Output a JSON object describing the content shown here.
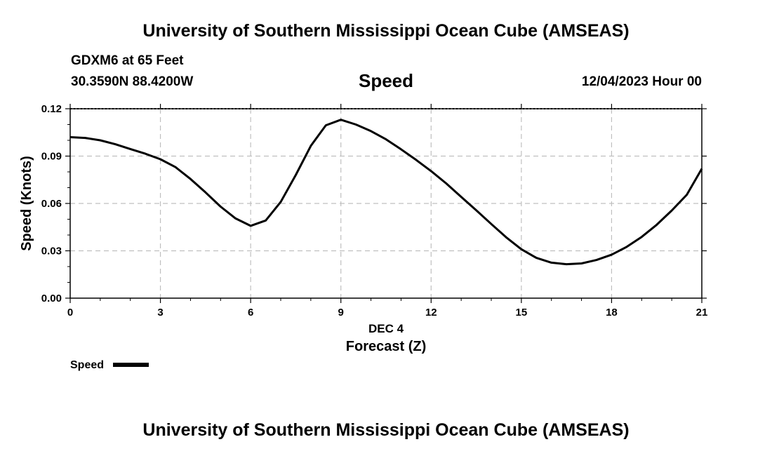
{
  "header": {
    "title": "University of Southern Mississippi Ocean Cube (AMSEAS)",
    "station": "GDXM6 at 65 Feet",
    "coords": "30.3590N  88.4200W",
    "datetime": "12/04/2023 Hour 00"
  },
  "footer": {
    "title": "University of Southern Mississippi Ocean Cube (AMSEAS)"
  },
  "chart_data": {
    "type": "line",
    "title": "Speed",
    "xlabel": "Forecast (Z)",
    "xsublabel": "DEC 4",
    "ylabel": "Speed (Knots)",
    "xlim": [
      0,
      21
    ],
    "ylim": [
      0,
      0.12
    ],
    "xticks": [
      0,
      3,
      6,
      9,
      12,
      15,
      18,
      21
    ],
    "yticks": [
      0,
      0.03,
      0.06,
      0.09,
      0.12
    ],
    "ytick_labels": [
      "0.00",
      "0.03",
      "0.06",
      "0.09",
      "0.12"
    ],
    "grid": true,
    "legend": "bottom-left",
    "series": [
      {
        "name": "Speed",
        "color": "#000000",
        "x": [
          0,
          0.5,
          1,
          1.5,
          2,
          2.5,
          3,
          3.5,
          4,
          4.5,
          5,
          5.5,
          6,
          6.5,
          7,
          7.5,
          8,
          8.5,
          9,
          9.5,
          10,
          10.5,
          11,
          11.5,
          12,
          12.5,
          13,
          13.5,
          14,
          14.5,
          15,
          15.5,
          16,
          16.5,
          17,
          17.5,
          18,
          18.5,
          19,
          19.5,
          20,
          20.5,
          21
        ],
        "y": [
          0.102,
          0.1015,
          0.1,
          0.0975,
          0.0945,
          0.0915,
          0.088,
          0.083,
          0.0755,
          0.067,
          0.058,
          0.0505,
          0.0458,
          0.0492,
          0.061,
          0.078,
          0.0965,
          0.1095,
          0.113,
          0.11,
          0.1058,
          0.1006,
          0.0943,
          0.0876,
          0.0805,
          0.0727,
          0.0642,
          0.0557,
          0.047,
          0.0385,
          0.031,
          0.0255,
          0.0225,
          0.0215,
          0.022,
          0.0242,
          0.0275,
          0.0325,
          0.0388,
          0.0465,
          0.0555,
          0.0655,
          0.082
        ]
      }
    ]
  }
}
